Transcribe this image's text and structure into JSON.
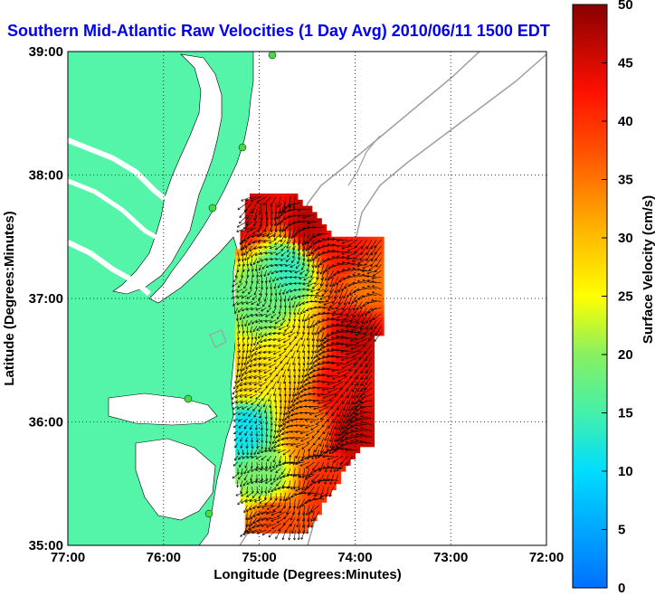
{
  "chart_data": {
    "type": "heatmap",
    "title": "Southern Mid-Atlantic Raw Velocities (1 Day Avg) 2010/06/11 1500 EDT",
    "xlabel": "Longitude (Degrees:Minutes)",
    "ylabel": "Latitude (Degrees:Minutes)",
    "x_ticks": [
      {
        "value": -77,
        "label": "77:00"
      },
      {
        "value": -76,
        "label": "76:00"
      },
      {
        "value": -75,
        "label": "75:00"
      },
      {
        "value": -74,
        "label": "74:00"
      },
      {
        "value": -73,
        "label": "73:00"
      },
      {
        "value": -72,
        "label": "72:00"
      }
    ],
    "y_ticks": [
      {
        "value": 35,
        "label": "35:00"
      },
      {
        "value": 36,
        "label": "36:00"
      },
      {
        "value": 37,
        "label": "37:00"
      },
      {
        "value": 38,
        "label": "38:00"
      },
      {
        "value": 39,
        "label": "39:00"
      }
    ],
    "xlim": [
      -77,
      -72
    ],
    "ylim": [
      35,
      39
    ],
    "grid": true,
    "colorbar": {
      "label": "Surface Velocity (cm/s)",
      "range": [
        0,
        50
      ],
      "ticks": [
        {
          "value": 0,
          "label": "0"
        },
        {
          "value": 5,
          "label": "5"
        },
        {
          "value": 10,
          "label": "10"
        },
        {
          "value": 15,
          "label": "15"
        },
        {
          "value": 20,
          "label": "20"
        },
        {
          "value": 25,
          "label": "25"
        },
        {
          "value": 30,
          "label": "30"
        },
        {
          "value": 35,
          "label": "35"
        },
        {
          "value": 40,
          "label": "40"
        },
        {
          "value": 45,
          "label": "45"
        },
        {
          "value": 50,
          "label": "50"
        }
      ]
    },
    "colors": {
      "land": "#55f5a9",
      "water": "#ffffff",
      "bathymetry": "#a0a0a0",
      "vector": "#000000",
      "station": "#44dd44",
      "title": "#0000ee"
    },
    "field": {
      "lon_range": [
        -75.25,
        -73.7
      ],
      "lat_range": [
        35.1,
        37.85
      ],
      "cell_lon": 0.05,
      "cell_lat": 0.05,
      "speed_centers": [
        {
          "lon": -75.1,
          "lat": 37.75,
          "speed": 45
        },
        {
          "lon": -74.5,
          "lat": 37.6,
          "speed": 47
        },
        {
          "lon": -74.1,
          "lat": 37.4,
          "speed": 42
        },
        {
          "lon": -73.9,
          "lat": 37.1,
          "speed": 35
        },
        {
          "lon": -74.0,
          "lat": 36.7,
          "speed": 46
        },
        {
          "lon": -74.2,
          "lat": 36.3,
          "speed": 43
        },
        {
          "lon": -74.0,
          "lat": 35.9,
          "speed": 46
        },
        {
          "lon": -74.3,
          "lat": 35.5,
          "speed": 40
        },
        {
          "lon": -74.7,
          "lat": 37.25,
          "speed": 14
        },
        {
          "lon": -74.95,
          "lat": 37.0,
          "speed": 18
        },
        {
          "lon": -74.6,
          "lat": 36.55,
          "speed": 27
        },
        {
          "lon": -75.15,
          "lat": 35.95,
          "speed": 11
        },
        {
          "lon": -74.95,
          "lat": 35.55,
          "speed": 19
        },
        {
          "lon": -74.5,
          "lat": 35.95,
          "speed": 34
        },
        {
          "lon": -74.85,
          "lat": 35.2,
          "speed": 38
        },
        {
          "lon": -75.15,
          "lat": 36.35,
          "speed": 28
        }
      ],
      "flow_direction_deg": 225
    }
  }
}
